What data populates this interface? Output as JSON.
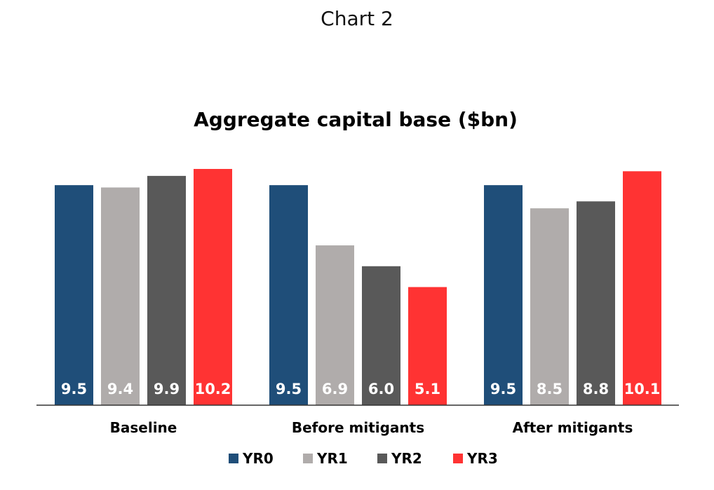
{
  "page": {
    "title": "Chart 2"
  },
  "chart_data": {
    "type": "bar",
    "title": "Aggregate capital base ($bn)",
    "categories": [
      "Baseline",
      "Before mitigants",
      "After mitigants"
    ],
    "series": [
      {
        "name": "YR0",
        "color": "#1f4e79",
        "values": [
          9.5,
          9.5,
          9.5
        ],
        "labels": [
          "9.5",
          "9.5",
          "9.5"
        ]
      },
      {
        "name": "YR1",
        "color": "#b0acab",
        "values": [
          9.4,
          6.9,
          8.5
        ],
        "labels": [
          "9.4",
          "6.9",
          "8.5"
        ]
      },
      {
        "name": "YR2",
        "color": "#595959",
        "values": [
          9.9,
          6.0,
          8.8
        ],
        "labels": [
          "9.9",
          "6.0",
          "8.8"
        ]
      },
      {
        "name": "YR3",
        "color": "#ff3333",
        "values": [
          10.2,
          5.1,
          10.1
        ],
        "labels": [
          "10.2",
          "5.1",
          "10.1"
        ]
      }
    ],
    "ylim": [
      0,
      10.2
    ],
    "grid": false,
    "y_axis_shown": false,
    "legend": "bottom"
  }
}
